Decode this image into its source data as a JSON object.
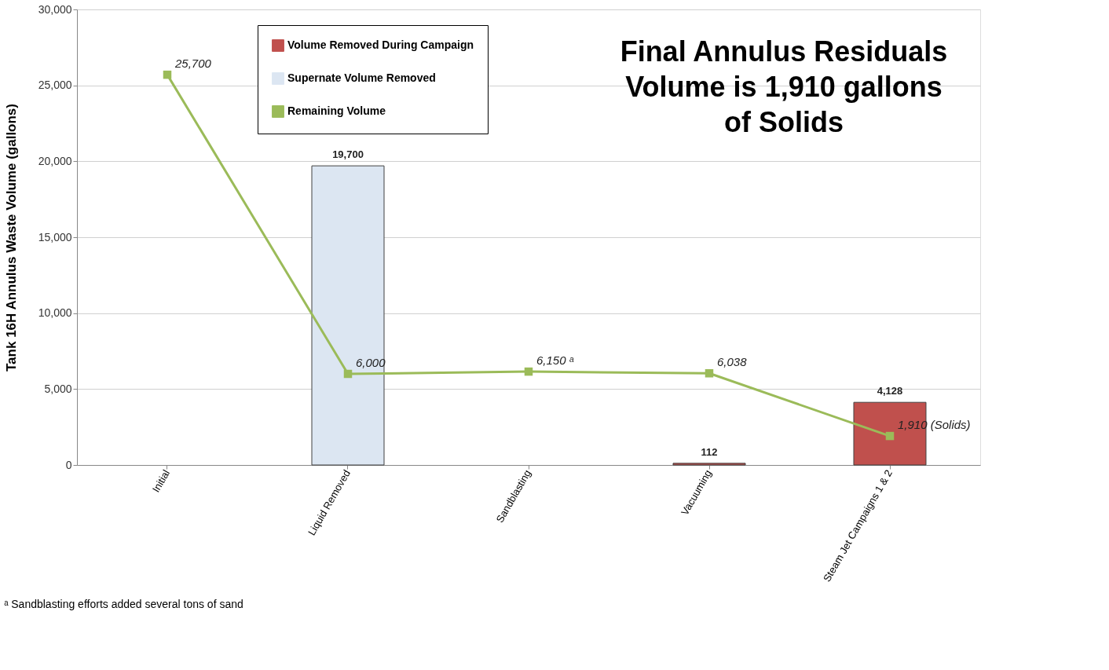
{
  "chart_data": {
    "type": "bar",
    "ylabel": "Tank 16H Annulus Waste Volume  (gallons)",
    "categories": [
      "Initial",
      "Liquid Removed",
      "Sandblasting",
      "Vacuuming",
      "Steam Jet Campaigns 1 & 2"
    ],
    "series": [
      {
        "name": "Volume Removed During Campaign",
        "color": "#c0504d",
        "values": [
          null,
          null,
          null,
          112,
          4128
        ],
        "value_labels": [
          null,
          null,
          null,
          "112",
          "4,128"
        ]
      },
      {
        "name": "Supernate Volume Removed",
        "color": "#dce6f2",
        "values": [
          null,
          19700,
          null,
          null,
          null
        ],
        "value_labels": [
          null,
          "19,700",
          null,
          null,
          null
        ]
      },
      {
        "name": "Remaining Volume",
        "type": "line",
        "color": "#9bbb59",
        "marker": "square",
        "line_style": "solid",
        "values": [
          25700,
          6000,
          6150,
          6038,
          1910
        ],
        "value_labels": [
          "25,700",
          "6,000",
          "6,150 ᵃ",
          "6,038",
          "1,910 (Solids)"
        ]
      }
    ],
    "ylim": [
      0,
      30000
    ],
    "yticks": [
      0,
      {
        "value": 5000,
        "label": "5,000"
      },
      {
        "value": 10000,
        "label": "10,000"
      },
      {
        "value": 15000,
        "label": "15,000"
      },
      {
        "value": 20000,
        "label": "20,000"
      },
      {
        "value": 25000,
        "label": "25,000"
      },
      {
        "value": 30000,
        "label": "30,000"
      }
    ],
    "grid": "y",
    "legend": "top",
    "annotations": [
      "Final Annulus Residuals Volume is 1,910 gallons of Solids",
      "ᵃ Sandblasting efforts added several tons of sand"
    ]
  }
}
